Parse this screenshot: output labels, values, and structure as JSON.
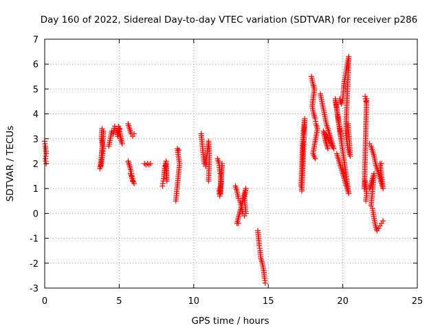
{
  "chart_data": {
    "type": "scatter",
    "title": "Day 160 of 2022, Sidereal Day-to-day VTEC variation (SDTVAR) for receiver p286",
    "xlabel": "GPS time / hours",
    "ylabel": "SDTVAR / TECUs",
    "xlim": [
      0,
      25
    ],
    "ylim": [
      -3,
      7
    ],
    "xticks": [
      "0",
      "5",
      "10",
      "15",
      "20",
      "25"
    ],
    "yticks": [
      "-3",
      "-2",
      "-1",
      "0",
      "1",
      "2",
      "3",
      "4",
      "5",
      "6",
      "7"
    ],
    "grid": true,
    "marker": "plus",
    "color": "#ff0000",
    "segments": [
      [
        [
          0.0,
          2.9
        ],
        [
          0.05,
          2.7
        ],
        [
          0.1,
          2.4
        ],
        [
          0.05,
          2.2
        ],
        [
          0.1,
          2.0
        ]
      ],
      [
        [
          3.7,
          1.8
        ],
        [
          3.8,
          2.0
        ],
        [
          3.9,
          2.4
        ],
        [
          3.95,
          2.6
        ],
        [
          3.8,
          3.0
        ],
        [
          3.85,
          3.4
        ],
        [
          3.95,
          3.3
        ],
        [
          3.75,
          1.9
        ]
      ],
      [
        [
          4.3,
          2.7
        ],
        [
          4.4,
          3.0
        ],
        [
          4.5,
          3.3
        ],
        [
          4.6,
          3.2
        ],
        [
          4.7,
          3.5
        ],
        [
          4.8,
          3.4
        ],
        [
          4.9,
          3.1
        ],
        [
          5.0,
          3.3
        ],
        [
          5.1,
          3.0
        ],
        [
          5.2,
          2.8
        ],
        [
          4.95,
          3.5
        ],
        [
          5.05,
          3.4
        ]
      ],
      [
        [
          5.6,
          3.6
        ],
        [
          5.7,
          3.4
        ],
        [
          5.8,
          3.2
        ],
        [
          5.9,
          3.1
        ],
        [
          6.0,
          3.2
        ]
      ],
      [
        [
          5.6,
          2.1
        ],
        [
          5.7,
          1.9
        ],
        [
          5.8,
          1.7
        ],
        [
          5.85,
          1.5
        ],
        [
          5.9,
          1.3
        ],
        [
          6.0,
          1.2
        ],
        [
          5.75,
          1.6
        ]
      ],
      [
        [
          6.7,
          2.0
        ],
        [
          6.8,
          1.95
        ],
        [
          6.9,
          2.0
        ],
        [
          7.0,
          1.95
        ],
        [
          7.1,
          2.0
        ]
      ],
      [
        [
          7.9,
          1.1
        ],
        [
          7.95,
          1.3
        ],
        [
          8.0,
          1.5
        ],
        [
          8.05,
          1.8
        ],
        [
          8.1,
          2.0
        ],
        [
          8.2,
          1.3
        ],
        [
          8.15,
          2.1
        ]
      ],
      [
        [
          8.8,
          0.5
        ],
        [
          8.85,
          0.8
        ],
        [
          8.9,
          1.1
        ],
        [
          8.95,
          1.4
        ],
        [
          9.0,
          1.7
        ],
        [
          9.05,
          2.0
        ],
        [
          8.9,
          2.6
        ],
        [
          9.0,
          2.55
        ]
      ],
      [
        [
          10.5,
          3.2
        ],
        [
          10.55,
          2.9
        ],
        [
          10.6,
          2.6
        ],
        [
          10.65,
          2.3
        ],
        [
          10.7,
          2.0
        ],
        [
          10.8,
          1.9
        ],
        [
          10.9,
          2.4
        ],
        [
          11.0,
          2.9
        ],
        [
          11.05,
          2.4
        ],
        [
          11.0,
          1.3
        ]
      ],
      [
        [
          11.6,
          2.2
        ],
        [
          11.7,
          2.0
        ],
        [
          11.75,
          1.7
        ],
        [
          11.8,
          1.5
        ],
        [
          11.85,
          1.2
        ],
        [
          11.7,
          0.9
        ],
        [
          11.75,
          0.7
        ],
        [
          11.9,
          2.0
        ],
        [
          11.8,
          0.8
        ]
      ],
      [
        [
          12.8,
          1.1
        ],
        [
          12.9,
          0.9
        ],
        [
          13.0,
          0.6
        ],
        [
          13.1,
          0.5
        ],
        [
          13.2,
          0.3
        ],
        [
          13.3,
          0.0
        ],
        [
          13.4,
          -0.1
        ],
        [
          13.5,
          0.0
        ],
        [
          13.4,
          0.6
        ],
        [
          13.5,
          1.0
        ],
        [
          12.9,
          -0.4
        ],
        [
          13.0,
          -0.4
        ]
      ],
      [
        [
          14.3,
          -0.7
        ],
        [
          14.35,
          -1.0
        ],
        [
          14.4,
          -1.3
        ],
        [
          14.45,
          -1.5
        ],
        [
          14.5,
          -1.8
        ],
        [
          14.6,
          -2.0
        ],
        [
          14.7,
          -2.3
        ],
        [
          14.75,
          -2.6
        ],
        [
          14.8,
          -2.8
        ]
      ],
      [
        [
          17.2,
          1.1
        ],
        [
          17.25,
          1.6
        ],
        [
          17.3,
          2.8
        ],
        [
          17.35,
          3.2
        ],
        [
          17.4,
          3.5
        ],
        [
          17.45,
          3.8
        ],
        [
          17.25,
          0.9
        ]
      ],
      [
        [
          17.9,
          5.5
        ],
        [
          18.0,
          5.2
        ],
        [
          18.1,
          5.0
        ],
        [
          17.95,
          4.3
        ],
        [
          18.05,
          4.0
        ],
        [
          18.15,
          3.8
        ],
        [
          18.2,
          3.6
        ],
        [
          18.3,
          3.4
        ],
        [
          18.0,
          2.4
        ],
        [
          18.15,
          2.2
        ]
      ],
      [
        [
          18.5,
          4.8
        ],
        [
          18.6,
          4.5
        ],
        [
          18.7,
          4.2
        ],
        [
          18.8,
          3.9
        ],
        [
          18.9,
          3.6
        ],
        [
          19.0,
          3.4
        ],
        [
          19.1,
          3.2
        ],
        [
          19.2,
          3.0
        ],
        [
          19.3,
          2.8
        ],
        [
          19.4,
          2.6
        ],
        [
          18.7,
          3.3
        ],
        [
          18.8,
          3.0
        ],
        [
          18.9,
          2.8
        ],
        [
          19.0,
          2.6
        ]
      ],
      [
        [
          19.6,
          2.4
        ],
        [
          19.7,
          2.2
        ],
        [
          19.8,
          2.0
        ],
        [
          19.9,
          1.8
        ],
        [
          20.0,
          1.6
        ],
        [
          20.1,
          1.4
        ],
        [
          20.2,
          1.2
        ],
        [
          20.3,
          1.0
        ],
        [
          20.4,
          0.8
        ],
        [
          19.5,
          4.6
        ],
        [
          19.6,
          4.2
        ],
        [
          19.7,
          3.8
        ],
        [
          19.8,
          3.4
        ],
        [
          19.9,
          3.0
        ]
      ],
      [
        [
          19.8,
          4.6
        ],
        [
          19.9,
          4.4
        ],
        [
          20.0,
          4.6
        ],
        [
          20.05,
          5.0
        ],
        [
          20.1,
          5.3
        ],
        [
          20.2,
          5.6
        ],
        [
          20.3,
          6.0
        ],
        [
          20.4,
          6.3
        ],
        [
          20.2,
          3.2
        ],
        [
          20.3,
          2.8
        ],
        [
          20.4,
          2.5
        ],
        [
          20.5,
          2.3
        ],
        [
          20.45,
          2.8
        ],
        [
          20.35,
          3.6
        ]
      ],
      [
        [
          21.5,
          4.7
        ],
        [
          21.55,
          4.5
        ],
        [
          21.6,
          4.6
        ],
        [
          21.45,
          1.0
        ],
        [
          21.5,
          1.3
        ],
        [
          21.6,
          0.8
        ],
        [
          21.55,
          0.5
        ]
      ],
      [
        [
          21.8,
          2.8
        ],
        [
          21.9,
          2.7
        ],
        [
          22.0,
          2.5
        ],
        [
          22.1,
          2.3
        ],
        [
          22.2,
          2.0
        ],
        [
          22.3,
          1.8
        ],
        [
          22.4,
          1.6
        ],
        [
          22.5,
          1.4
        ],
        [
          22.6,
          1.2
        ],
        [
          22.7,
          1.0
        ],
        [
          22.5,
          2.0
        ],
        [
          22.6,
          2.0
        ]
      ],
      [
        [
          21.8,
          1.0
        ],
        [
          21.9,
          1.2
        ],
        [
          22.0,
          1.4
        ],
        [
          22.1,
          1.6
        ],
        [
          21.9,
          0.3
        ],
        [
          22.0,
          0.2
        ],
        [
          22.1,
          -0.2
        ],
        [
          22.2,
          -0.5
        ],
        [
          22.3,
          -0.7
        ],
        [
          22.4,
          -0.6
        ],
        [
          22.5,
          -0.5
        ],
        [
          22.6,
          -0.4
        ],
        [
          22.7,
          -0.3
        ]
      ]
    ]
  }
}
